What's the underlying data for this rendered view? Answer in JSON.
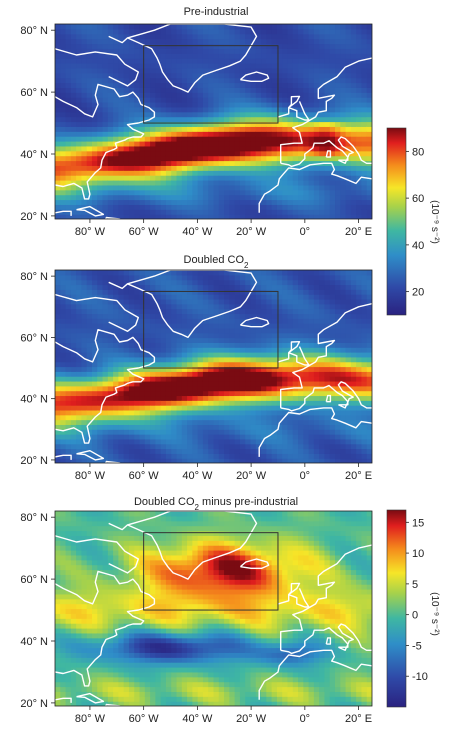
{
  "chart_data": [
    {
      "type": "heatmap",
      "title": "Pre-industrial",
      "x": [
        -90,
        -80,
        -70,
        -60,
        -50,
        -40,
        -30,
        -20,
        -10,
        0,
        10,
        20,
        25
      ],
      "y": [
        20,
        25,
        30,
        35,
        40,
        45,
        50,
        55,
        60,
        65,
        70,
        75,
        80,
        82
      ],
      "xticks": [
        "80° W",
        "60° W",
        "40° W",
        "20° W",
        "0°",
        "20° E"
      ],
      "xtick_values": [
        -80,
        -60,
        -40,
        -20,
        0,
        20
      ],
      "yticks": [
        "20° N",
        "40° N",
        "60° N",
        "80° N"
      ],
      "ytick_values": [
        20,
        40,
        60,
        80
      ],
      "xlim": [
        -93,
        25
      ],
      "ylim": [
        19,
        82
      ],
      "box": {
        "lon": [
          -60,
          -10
        ],
        "lat": [
          50,
          75
        ]
      },
      "colorbar": {
        "ticks": [
          "20",
          "40",
          "60",
          "80"
        ],
        "tick_values": [
          20,
          40,
          60,
          80
        ],
        "range": [
          10,
          90
        ],
        "unit_label": "(10⁻⁹ s⁻²)"
      },
      "jet_core": {
        "peak_value": 88,
        "lat_west": 38,
        "lat_east": 44,
        "strength_trend": "peaks near 40° W"
      }
    },
    {
      "type": "heatmap",
      "title": "Doubled CO",
      "title_subscript": "2",
      "x": [
        -90,
        -80,
        -70,
        -60,
        -50,
        -40,
        -30,
        -20,
        -10,
        0,
        10,
        20,
        25
      ],
      "y": [
        20,
        25,
        30,
        35,
        40,
        45,
        50,
        55,
        60,
        65,
        70,
        75,
        80,
        82
      ],
      "xticks": [
        "80° W",
        "60° W",
        "40° W",
        "20° W",
        "0°",
        "20° E"
      ],
      "xtick_values": [
        -80,
        -60,
        -40,
        -20,
        0,
        20
      ],
      "yticks": [
        "20° N",
        "40° N",
        "60° N",
        "80° N"
      ],
      "ytick_values": [
        20,
        40,
        60,
        80
      ],
      "xlim": [
        -93,
        25
      ],
      "ylim": [
        19,
        82
      ],
      "box": {
        "lon": [
          -60,
          -10
        ],
        "lat": [
          50,
          75
        ]
      },
      "jet_core": {
        "peak_value": 85,
        "lat_west": 40,
        "lat_east": 46,
        "strength_trend": "peaks near 40° W, shifted poleward"
      }
    },
    {
      "type": "heatmap",
      "title": "Doubled CO",
      "title_subscript": "2",
      "title_suffix": " minus pre-industrial",
      "x": [
        -90,
        -80,
        -70,
        -60,
        -50,
        -40,
        -30,
        -20,
        -10,
        0,
        10,
        20,
        25
      ],
      "y": [
        20,
        25,
        30,
        35,
        40,
        45,
        50,
        55,
        60,
        65,
        70,
        75,
        80,
        82
      ],
      "xticks": [
        "80° W",
        "60° W",
        "40° W",
        "20° W",
        "0°",
        "20° E"
      ],
      "xtick_values": [
        -80,
        -60,
        -40,
        -20,
        0,
        20
      ],
      "yticks": [
        "20° N",
        "40° N",
        "60° N",
        "80° N"
      ],
      "ytick_values": [
        20,
        40,
        60,
        80
      ],
      "xlim": [
        -93,
        25
      ],
      "ylim": [
        19,
        82
      ],
      "box": {
        "lon": [
          -60,
          -10
        ],
        "lat": [
          50,
          75
        ]
      },
      "colorbar": {
        "ticks": [
          "15",
          "10",
          "5",
          "0",
          "-5",
          "-10"
        ],
        "tick_values": [
          15,
          10,
          5,
          0,
          -5,
          -10
        ],
        "range": [
          -15,
          17
        ],
        "unit_label": "(10⁻⁹ s⁻²)"
      },
      "anomaly": {
        "max_increase": 16,
        "max_increase_at": {
          "lon": -30,
          "lat": 62
        },
        "max_decrease": -12,
        "max_decrease_at": {
          "lon": -55,
          "lat": 38
        }
      }
    }
  ],
  "colors": {
    "jet_low": "#2a2785",
    "jet_mid": "#43b1a0",
    "jet_high": "#7a0a14",
    "coastline": "#ffffff",
    "box": "#333333"
  }
}
